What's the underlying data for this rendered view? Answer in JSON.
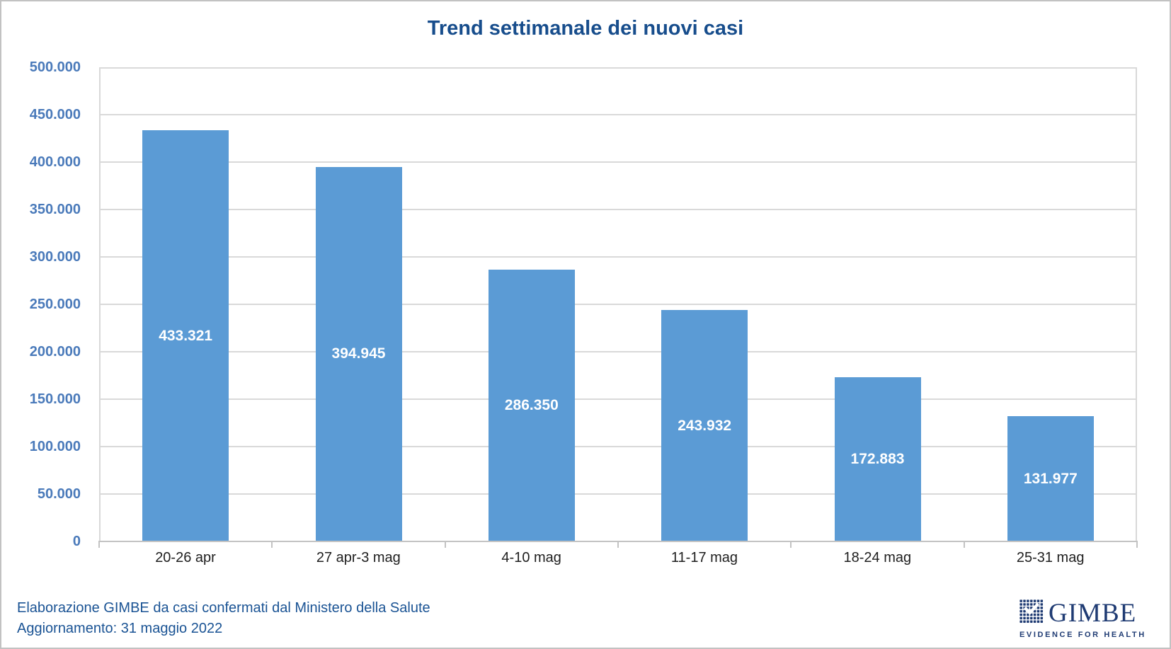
{
  "chart_data": {
    "type": "bar",
    "title": "Trend settimanale dei nuovi casi",
    "categories": [
      "20-26 apr",
      "27 apr-3 mag",
      "4-10 mag",
      "11-17 mag",
      "18-24 mag",
      "25-31 mag"
    ],
    "values": [
      433321,
      394945,
      286350,
      243932,
      172883,
      131977
    ],
    "value_labels": [
      "433.321",
      "394.945",
      "286.350",
      "243.932",
      "172.883",
      "131.977"
    ],
    "xlabel": "",
    "ylabel": "",
    "ylim": [
      0,
      500000
    ],
    "ytick_step": 50000,
    "ytick_labels": [
      "0",
      "50.000",
      "100.000",
      "150.000",
      "200.000",
      "250.000",
      "300.000",
      "350.000",
      "400.000",
      "450.000",
      "500.000"
    ],
    "grid": true,
    "legend": false,
    "colors": {
      "bar": "#5B9BD5",
      "value_label": "#ffffff",
      "title": "#174D8C",
      "ytick": "#4A7ABA",
      "xtick": "#1f1f1f",
      "gridline": "#d9d9d9",
      "axis_line": "#c3c3c3"
    }
  },
  "footer": {
    "line1": "Elaborazione GIMBE da casi confermati dal Ministero della Salute",
    "line2": "Aggiornamento: 31 maggio 2022",
    "color": "#1A5394"
  },
  "logo": {
    "brand": "GIMBE",
    "tagline": "EVIDENCE FOR HEALTH",
    "color": "#1F3B73"
  }
}
